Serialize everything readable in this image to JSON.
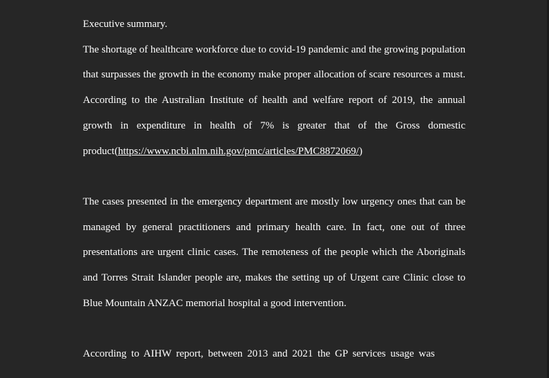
{
  "document": {
    "heading": "Executive summary.",
    "paragraph_1_text": "The shortage of healthcare workforce due to covid-19 pandemic and the growing population that surpasses the growth in the economy make proper allocation of scare resources a must. According to the Australian Institute of health and welfare report of 2019, the annual growth in expenditure in health of 7% is greater that of the Gross domestic product",
    "paragraph_1_link_open": "(",
    "paragraph_1_link": "https://www.ncbi.nlm.nih.gov/pmc/articles/PMC8872069/",
    "paragraph_1_link_close": ")",
    "paragraph_2": "The cases presented in the emergency department are mostly low urgency ones that can be managed by general practitioners and primary health care. In fact, one out of three presentations are urgent clinic cases. The remoteness of the people which the Aboriginals and Torres Strait Islander people are, makes the setting up of Urgent care Clinic close to Blue Mountain ANZAC memorial hospital a good intervention.",
    "paragraph_3_line_1": "According to AIHW report, between 2013 and 2021 the GP services usage was"
  }
}
